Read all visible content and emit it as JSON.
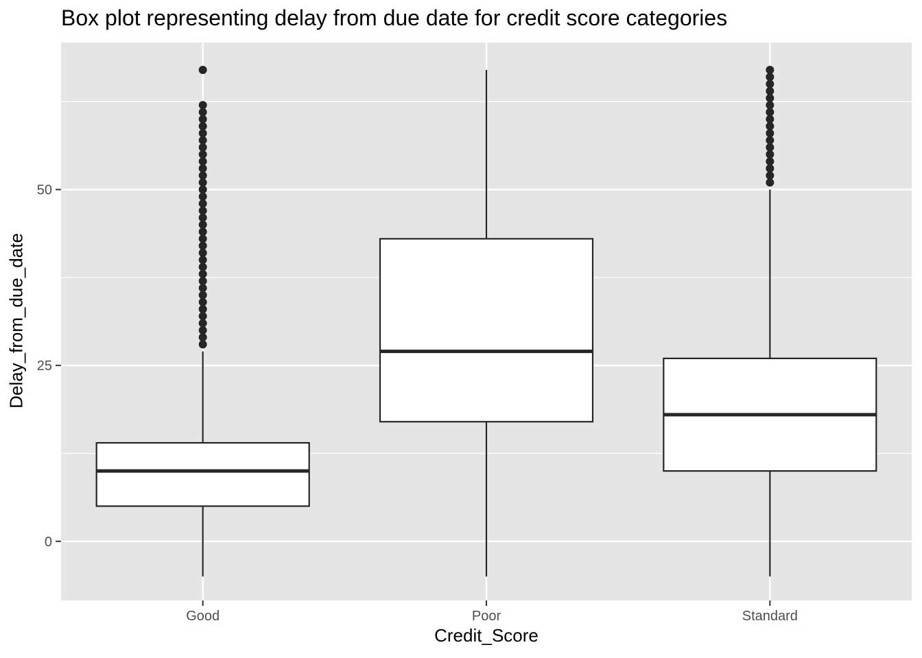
{
  "chart_data": {
    "type": "box",
    "title": "Box plot representing delay from due date for credit score categories",
    "xlabel": "Credit_Score",
    "ylabel": "Delay_from_due_date",
    "categories": [
      "Good",
      "Poor",
      "Standard"
    ],
    "ylim": [
      -8.4,
      70.9
    ],
    "yticks": [
      0,
      25,
      50
    ],
    "ytick_labels": [
      "0",
      "25",
      "50"
    ],
    "grid": true,
    "legend": "none",
    "boxes": [
      {
        "category": "Good",
        "min": -5,
        "q1": 5,
        "median": 10,
        "q3": 14,
        "max": 27,
        "outliers": [
          28,
          29,
          30,
          31,
          32,
          33,
          34,
          35,
          36,
          37,
          38,
          39,
          40,
          41,
          42,
          43,
          44,
          45,
          46,
          47,
          48,
          49,
          50,
          51,
          52,
          53,
          54,
          55,
          56,
          57,
          58,
          59,
          60,
          61,
          62,
          67
        ]
      },
      {
        "category": "Poor",
        "min": -5,
        "q1": 17,
        "median": 27,
        "q3": 43,
        "max": 67,
        "outliers": []
      },
      {
        "category": "Standard",
        "min": -5,
        "q1": 10,
        "median": 18,
        "q3": 26,
        "max": 50,
        "outliers": [
          51,
          52,
          53,
          54,
          55,
          56,
          57,
          58,
          59,
          60,
          61,
          62,
          63,
          64,
          65,
          66,
          67
        ]
      }
    ],
    "colors": {
      "panel": "#e5e5e5",
      "grid": "#ffffff",
      "box_fill": "#ffffff",
      "stroke": "#262626",
      "tick_text": "#4d4d4d"
    }
  }
}
